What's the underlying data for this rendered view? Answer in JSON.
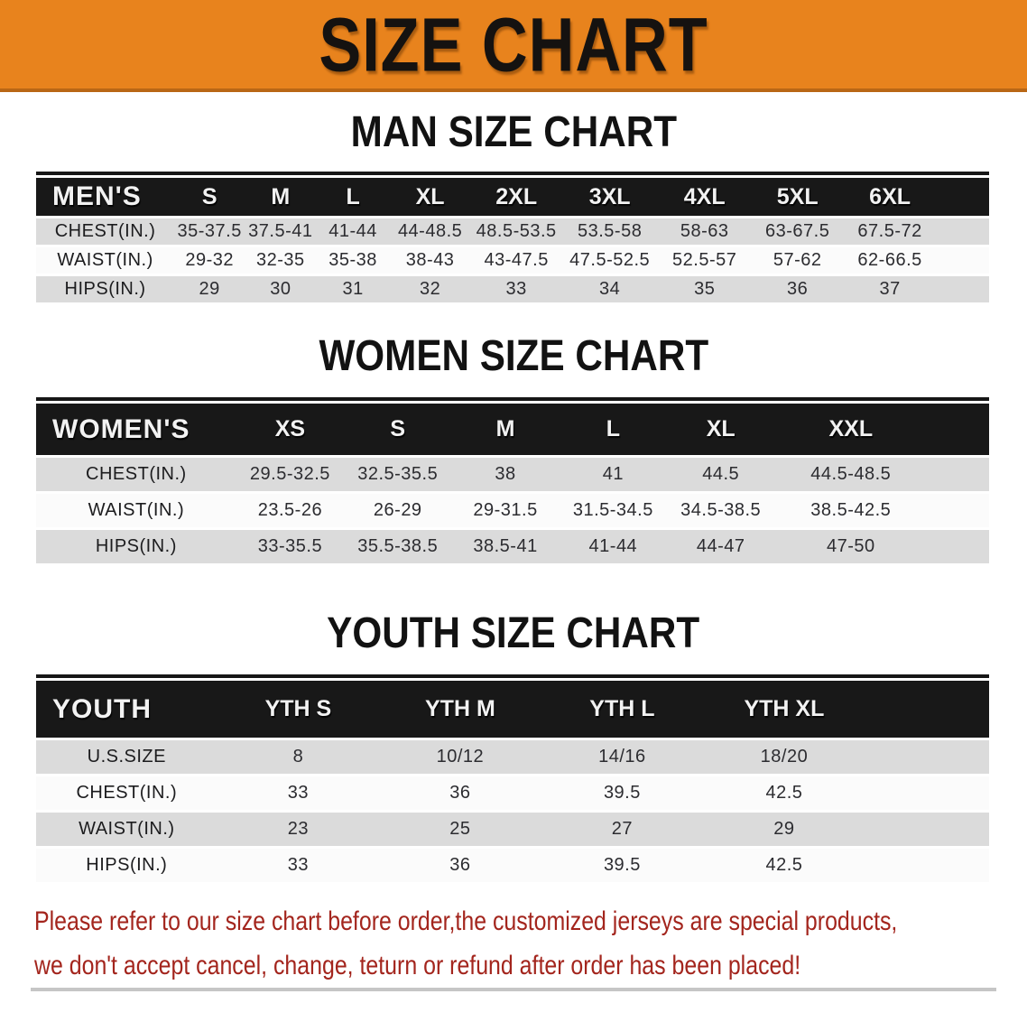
{
  "banner": {
    "title": "SIZE CHART",
    "bg_color": "#E8831D",
    "border_color": "#B96715",
    "text_color": "#151210"
  },
  "sections": [
    {
      "id": "men",
      "heading": "MAN SIZE CHART",
      "corner_label": "MEN'S",
      "columns": [
        "S",
        "M",
        "L",
        "XL",
        "2XL",
        "3XL",
        "4XL",
        "5XL",
        "6XL"
      ],
      "rows": [
        {
          "label": "CHEST(IN.)",
          "values": [
            "35-37.5",
            "37.5-41",
            "41-44",
            "44-48.5",
            "48.5-53.5",
            "53.5-58",
            "58-63",
            "63-67.5",
            "67.5-72"
          ]
        },
        {
          "label": "WAIST(IN.)",
          "values": [
            "29-32",
            "32-35",
            "35-38",
            "38-43",
            "43-47.5",
            "47.5-52.5",
            "52.5-57",
            "57-62",
            "62-66.5"
          ]
        },
        {
          "label": "HIPS(IN.)",
          "values": [
            "29",
            "30",
            "31",
            "32",
            "33",
            "34",
            "35",
            "36",
            "37"
          ]
        }
      ]
    },
    {
      "id": "women",
      "heading": "WOMEN SIZE CHART",
      "corner_label": "WOMEN'S",
      "columns": [
        "XS",
        "S",
        "M",
        "L",
        "XL",
        "XXL"
      ],
      "rows": [
        {
          "label": "CHEST(IN.)",
          "values": [
            "29.5-32.5",
            "32.5-35.5",
            "38",
            "41",
            "44.5",
            "44.5-48.5"
          ]
        },
        {
          "label": "WAIST(IN.)",
          "values": [
            "23.5-26",
            "26-29",
            "29-31.5",
            "31.5-34.5",
            "34.5-38.5",
            "38.5-42.5"
          ]
        },
        {
          "label": "HIPS(IN.)",
          "values": [
            "33-35.5",
            "35.5-38.5",
            "38.5-41",
            "41-44",
            "44-47",
            "47-50"
          ]
        }
      ]
    },
    {
      "id": "youth",
      "heading": "YOUTH SIZE CHART",
      "corner_label": "YOUTH",
      "columns": [
        "YTH S",
        "YTH M",
        "YTH L",
        "YTH XL"
      ],
      "rows": [
        {
          "label": "U.S.SIZE",
          "values": [
            "8",
            "10/12",
            "14/16",
            "18/20"
          ]
        },
        {
          "label": "CHEST(IN.)",
          "values": [
            "33",
            "36",
            "39.5",
            "42.5"
          ]
        },
        {
          "label": "WAIST(IN.)",
          "values": [
            "23",
            "25",
            "27",
            "29"
          ]
        },
        {
          "label": "HIPS(IN.)",
          "values": [
            "33",
            "36",
            "39.5",
            "42.5"
          ]
        }
      ]
    }
  ],
  "table_style": {
    "header_band_color": "#181818",
    "shaded_row_color": "#DBDBDB"
  },
  "disclaimer": {
    "line1": "Please refer to our size chart before order,the customized jerseys are special products,",
    "line2": "we don't accept cancel, change, teturn or refund after order has been placed!",
    "color": "#A3251D"
  }
}
